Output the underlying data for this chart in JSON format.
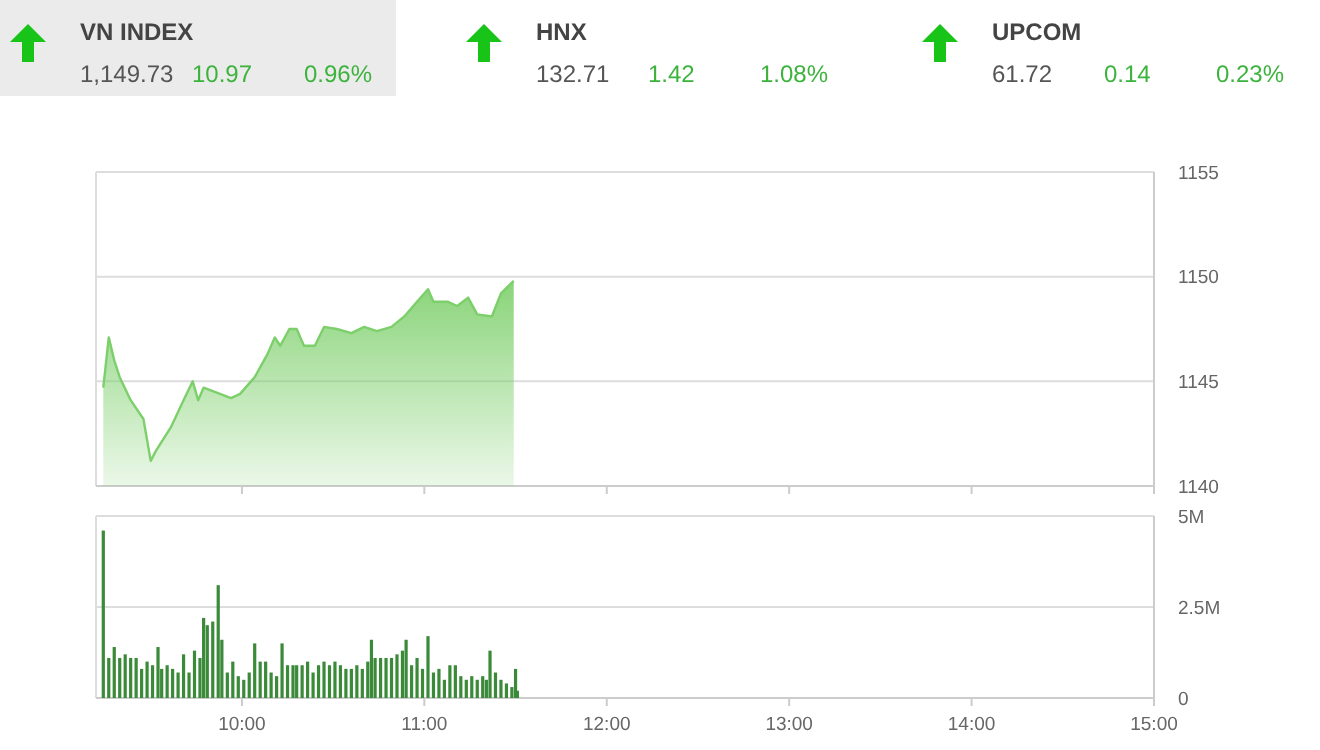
{
  "chart_data": [
    {
      "type": "other",
      "annotations": [
        "VN INDEX",
        "1,149.73",
        "10.97",
        "0.96%",
        "HNX",
        "132.71",
        "1.42",
        "1.08%",
        "UPCOM",
        "61.72",
        "0.14",
        "0.23%"
      ]
    },
    {
      "type": "area",
      "x": [
        9.24,
        9.27,
        9.3,
        9.33,
        9.39,
        9.46,
        9.5,
        9.53,
        9.61,
        9.68,
        9.73,
        9.76,
        9.79,
        9.88,
        9.94,
        9.99,
        10.07,
        10.14,
        10.18,
        10.21,
        10.26,
        10.3,
        10.34,
        10.4,
        10.45,
        10.52,
        10.6,
        10.67,
        10.74,
        10.82,
        10.89,
        10.95,
        11.02,
        11.05,
        11.13,
        11.18,
        11.24,
        11.29,
        11.37,
        11.42,
        11.49
      ],
      "values": [
        1144.7,
        1147.1,
        1146.0,
        1145.2,
        1144.1,
        1143.2,
        1141.2,
        1141.7,
        1142.8,
        1144.1,
        1145.0,
        1144.1,
        1144.7,
        1144.4,
        1144.2,
        1144.4,
        1145.2,
        1146.3,
        1147.1,
        1146.7,
        1147.5,
        1147.5,
        1146.7,
        1146.7,
        1147.6,
        1147.5,
        1147.3,
        1147.6,
        1147.4,
        1147.6,
        1148.1,
        1148.7,
        1149.4,
        1148.8,
        1148.8,
        1148.6,
        1149.0,
        1148.2,
        1148.1,
        1149.2,
        1149.8
      ],
      "color": "#7ccf6a",
      "xlim": [
        9.2,
        15
      ],
      "xticks": [
        {
          "value": 10,
          "label": null
        },
        {
          "value": 11,
          "label": null
        },
        {
          "value": 12,
          "label": null
        },
        {
          "value": 13,
          "label": null
        },
        {
          "value": 14,
          "label": null
        },
        {
          "value": 15,
          "label": null
        }
      ],
      "ylim": [
        1140,
        1155
      ],
      "yticks": [
        1140,
        1145,
        1150,
        1155
      ],
      "grid": "y",
      "tick_labels": "y"
    },
    {
      "type": "bar",
      "x": [
        9.24,
        9.27,
        9.3,
        9.33,
        9.36,
        9.39,
        9.42,
        9.45,
        9.48,
        9.51,
        9.54,
        9.56,
        9.59,
        9.62,
        9.65,
        9.68,
        9.71,
        9.74,
        9.77,
        9.79,
        9.81,
        9.84,
        9.87,
        9.89,
        9.92,
        9.95,
        9.98,
        10.01,
        10.04,
        10.07,
        10.1,
        10.13,
        10.16,
        10.19,
        10.22,
        10.25,
        10.28,
        10.3,
        10.33,
        10.36,
        10.39,
        10.42,
        10.45,
        10.48,
        10.51,
        10.54,
        10.57,
        10.6,
        10.63,
        10.66,
        10.69,
        10.71,
        10.73,
        10.76,
        10.79,
        10.82,
        10.85,
        10.88,
        10.9,
        10.93,
        10.96,
        10.99,
        11.02,
        11.05,
        11.08,
        11.11,
        11.14,
        11.17,
        11.2,
        11.23,
        11.26,
        11.29,
        11.32,
        11.34,
        11.36,
        11.39,
        11.42,
        11.45,
        11.48,
        11.5,
        11.51
      ],
      "values": [
        4.6,
        1.1,
        1.4,
        1.1,
        1.2,
        1.1,
        1.1,
        0.8,
        1.0,
        0.9,
        1.4,
        0.8,
        0.9,
        0.8,
        0.7,
        1.2,
        0.7,
        1.3,
        1.1,
        2.2,
        2.0,
        2.1,
        3.1,
        1.6,
        0.7,
        1.0,
        0.6,
        0.5,
        0.7,
        1.5,
        1.0,
        1.0,
        0.7,
        0.6,
        1.5,
        0.9,
        0.9,
        0.9,
        0.9,
        1.0,
        0.7,
        0.9,
        1.0,
        0.9,
        1.0,
        0.9,
        0.8,
        0.8,
        0.9,
        0.8,
        1.0,
        1.6,
        1.1,
        1.1,
        1.1,
        1.1,
        1.2,
        1.3,
        1.6,
        0.9,
        1.1,
        0.8,
        1.7,
        0.7,
        0.8,
        0.5,
        0.9,
        0.9,
        0.6,
        0.5,
        0.6,
        0.5,
        0.6,
        0.5,
        1.3,
        0.7,
        0.5,
        0.4,
        0.3,
        0.8,
        0.2
      ],
      "color": "#3a8a3a",
      "xlim": [
        9.2,
        15
      ],
      "xticks": [
        {
          "value": 10,
          "label": "10:00"
        },
        {
          "value": 11,
          "label": "11:00"
        },
        {
          "value": 12,
          "label": "12:00"
        },
        {
          "value": 13,
          "label": "13:00"
        },
        {
          "value": 14,
          "label": "14:00"
        },
        {
          "value": 15,
          "label": "15:00"
        }
      ],
      "ylim": [
        0,
        5
      ],
      "yticks": [
        {
          "value": 0,
          "label": "0"
        },
        {
          "value": 2.5,
          "label": "2.5M"
        },
        {
          "value": 5,
          "label": "5M"
        }
      ],
      "grid": "y"
    }
  ]
}
